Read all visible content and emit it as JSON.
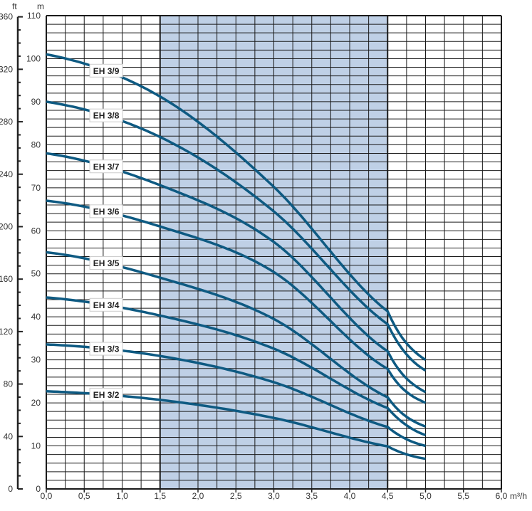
{
  "chart_data": {
    "type": "line",
    "title": "",
    "xlabel": "m³/h",
    "ylabel": "m",
    "ylabel_secondary": "ft",
    "xlim": [
      0,
      6.0
    ],
    "ylim": [
      0,
      110
    ],
    "ylim_secondary_ft": [
      0,
      360
    ],
    "grid": true,
    "x_ticks": [
      "0,0",
      "0,5",
      "1,0",
      "1,5",
      "2,0",
      "2,5",
      "3,0",
      "3,5",
      "4,0",
      "4,5",
      "5,0",
      "5,5",
      "6,0"
    ],
    "y_ticks": [
      "0",
      "10",
      "20",
      "30",
      "40",
      "50",
      "60",
      "70",
      "80",
      "90",
      "100",
      "110"
    ],
    "y_ticks_ft": [
      "0",
      "40",
      "80",
      "120",
      "160",
      "200",
      "240",
      "280",
      "320",
      "360"
    ],
    "shaded_range": [
      1.5,
      4.5
    ],
    "colors": {
      "curve": "#0e5a82",
      "shade": "#bfd0e6",
      "grid": "#1a1a1a"
    },
    "x": [
      0,
      1.5,
      3.0,
      4.5,
      5.0
    ],
    "series": [
      {
        "name": "EH 3/9",
        "values": [
          101,
          91.2,
          70.2,
          41.3,
          30
        ]
      },
      {
        "name": "EH 3/8",
        "values": [
          90,
          81.8,
          64.5,
          38.3,
          27.5
        ]
      },
      {
        "name": "EH 3/7",
        "values": [
          78,
          70.6,
          57.4,
          32,
          22.5
        ]
      },
      {
        "name": "EH 3/6",
        "values": [
          67,
          61,
          50.4,
          27.9,
          20
        ]
      },
      {
        "name": "EH 3/5",
        "values": [
          55,
          49.1,
          39.5,
          21.3,
          14.5
        ]
      },
      {
        "name": "EH 3/4",
        "values": [
          44.5,
          40.3,
          32.6,
          18.8,
          12.5
        ]
      },
      {
        "name": "EH 3/3",
        "values": [
          33.6,
          30.9,
          24.8,
          14.4,
          10
        ]
      },
      {
        "name": "EH 3/2",
        "values": [
          22.7,
          20.7,
          16.5,
          9.9,
          7
        ]
      }
    ]
  }
}
